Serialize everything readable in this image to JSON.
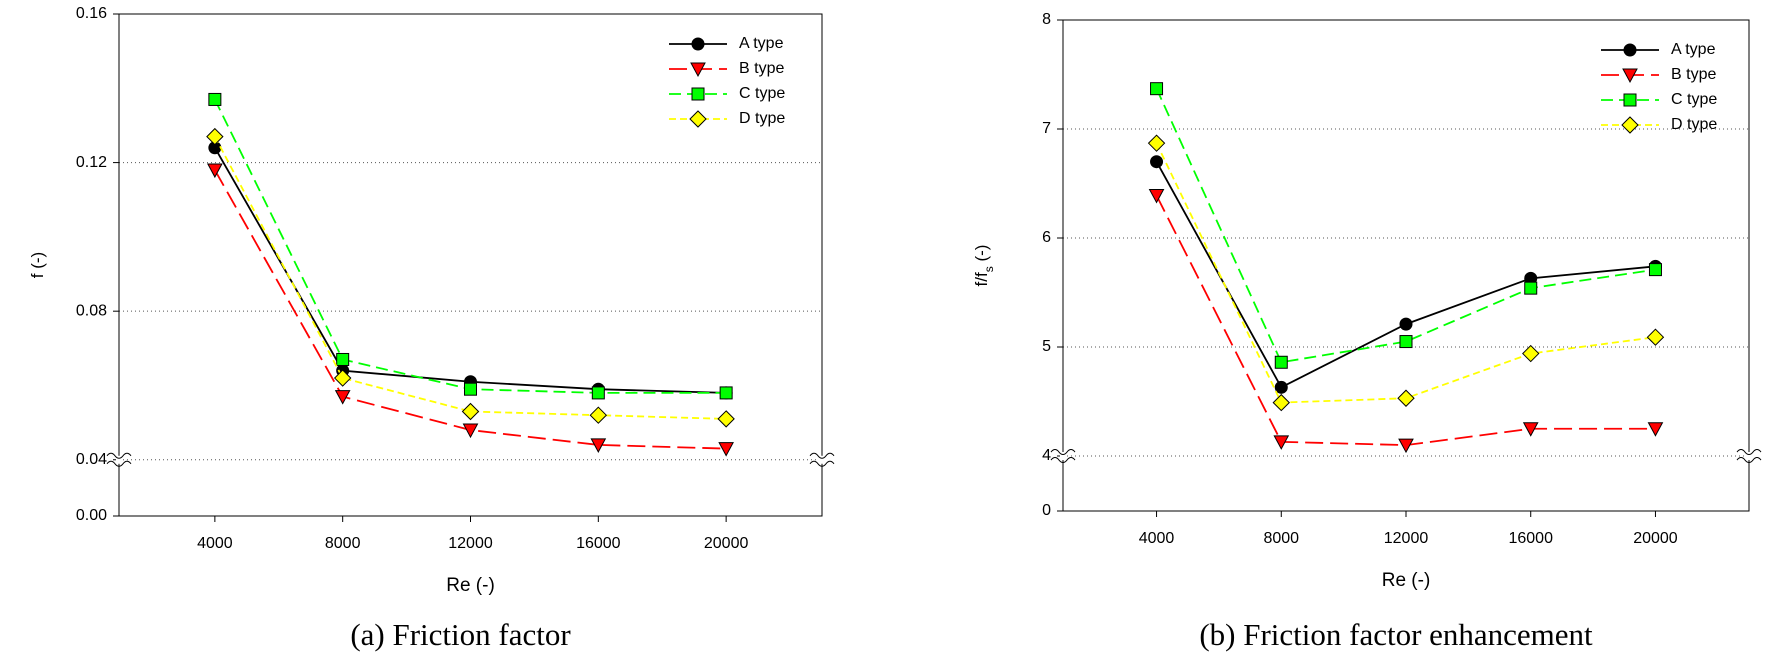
{
  "chart_data": [
    {
      "type": "line",
      "caption": "(a) Friction factor",
      "xlabel": "Re (-)",
      "ylabel": [
        "f (-)"
      ],
      "x": [
        4000,
        8000,
        12000,
        16000,
        20000
      ],
      "xlim": [
        1000,
        23000
      ],
      "xticks": [
        4000,
        8000,
        12000,
        16000,
        20000
      ],
      "ylim": [
        0,
        0.16
      ],
      "yticks": [
        {
          "value": 0,
          "label": "0.00"
        },
        0.04,
        0.08,
        0.12,
        0.16
      ],
      "ybreak": 0.04,
      "grid": true,
      "legend": "upper right",
      "series": [
        {
          "name": "A type",
          "color": "#000000",
          "marker": "circle",
          "line_style": "solid",
          "values": [
            0.124,
            0.064,
            0.061,
            0.059,
            0.058
          ]
        },
        {
          "name": "B type",
          "color": "#ff0000",
          "marker": "triangle-down",
          "line_style": "long-dash",
          "values": [
            0.118,
            0.057,
            0.048,
            0.044,
            0.043
          ]
        },
        {
          "name": "C type",
          "color": "#00ff00",
          "marker": "square",
          "line_style": "dash",
          "values": [
            0.137,
            0.067,
            0.059,
            0.058,
            0.058
          ]
        },
        {
          "name": "D type",
          "color": "#ffff00",
          "marker": "diamond",
          "line_style": "short-dash",
          "values": [
            0.127,
            0.062,
            0.053,
            0.052,
            0.051
          ]
        }
      ]
    },
    {
      "type": "line",
      "caption": "(b) Friction factor enhancement",
      "xlabel": "Re (-)",
      "ylabel": [
        "f/f",
        "s",
        " (-)"
      ],
      "x": [
        4000,
        8000,
        12000,
        16000,
        20000
      ],
      "xlim": [
        1000,
        23000
      ],
      "xticks": [
        4000,
        8000,
        12000,
        16000,
        20000
      ],
      "ylim": [
        0,
        8
      ],
      "yticks": [
        0,
        4,
        5,
        6,
        7,
        8
      ],
      "ybreak": 4,
      "grid": true,
      "legend": "upper right",
      "series": [
        {
          "name": "A type",
          "color": "#000000",
          "marker": "circle",
          "line_style": "solid",
          "values": [
            6.7,
            4.63,
            5.21,
            5.63,
            5.74
          ]
        },
        {
          "name": "B type",
          "color": "#ff0000",
          "marker": "triangle-down",
          "line_style": "long-dash",
          "values": [
            6.39,
            4.13,
            4.1,
            4.25,
            4.25
          ]
        },
        {
          "name": "C type",
          "color": "#00ff00",
          "marker": "square",
          "line_style": "dash",
          "values": [
            7.37,
            4.86,
            5.05,
            5.54,
            5.71
          ]
        },
        {
          "name": "D type",
          "color": "#ffff00",
          "marker": "diamond",
          "line_style": "short-dash",
          "values": [
            6.87,
            4.49,
            4.53,
            4.94,
            5.09
          ]
        }
      ]
    }
  ]
}
